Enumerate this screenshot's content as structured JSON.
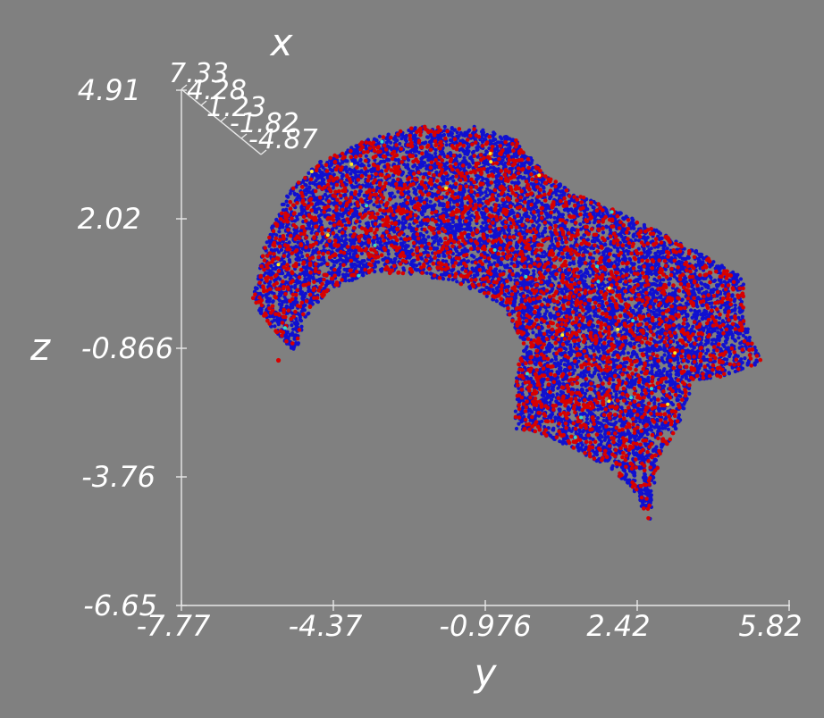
{
  "chart_data": {
    "type": "scatter",
    "axes": {
      "y": {
        "label": "y",
        "range": [
          -7.77,
          5.82
        ],
        "ticks": [
          "-7.77",
          "-4.37",
          "-0.976",
          "2.42",
          "5.82"
        ]
      },
      "z": {
        "label": "z",
        "range": [
          -6.65,
          4.91
        ],
        "ticks": [
          "-6.65",
          "-3.76",
          "-0.866",
          "2.02",
          "4.91"
        ]
      },
      "x": {
        "label": "x",
        "range": [
          -4.87,
          7.33
        ],
        "ticks": [
          "7.33",
          "4.28",
          "1.23",
          "-1.82",
          "-4.87"
        ]
      }
    },
    "colors": {
      "background": "#808080",
      "primary": "#1010d0",
      "secondary": "#d80000",
      "accent_yellow": "#ffee22",
      "accent_cyan": "#33ddcc",
      "axis": "#e8e8e8",
      "text": "#ffffff"
    },
    "grid": false,
    "series": [
      {
        "color": "#1010d0",
        "point_count": 9000,
        "outline_yz": [
          [
            -6.2,
            0.2
          ],
          [
            -5.9,
            1.5
          ],
          [
            -5.4,
            2.6
          ],
          [
            -4.7,
            3.3
          ],
          [
            -3.6,
            3.8
          ],
          [
            -2.5,
            4.1
          ],
          [
            -1.2,
            4.1
          ],
          [
            -0.3,
            3.8
          ],
          [
            0.4,
            3.0
          ],
          [
            1.0,
            2.6
          ],
          [
            2.2,
            2.1
          ],
          [
            3.4,
            1.5
          ],
          [
            4.8,
            0.7
          ],
          [
            4.8,
            -0.2
          ],
          [
            5.2,
            -1.2
          ],
          [
            4.4,
            -1.5
          ],
          [
            3.7,
            -1.6
          ],
          [
            3.5,
            -2.3
          ],
          [
            2.9,
            -3.4
          ],
          [
            2.7,
            -4.8
          ],
          [
            2.3,
            -4.0
          ],
          [
            1.7,
            -3.5
          ],
          [
            1.1,
            -3.2
          ],
          [
            0.7,
            -3.0
          ],
          [
            0.3,
            -2.8
          ],
          [
            -0.3,
            -2.7
          ],
          [
            -0.3,
            -1.5
          ],
          [
            -0.1,
            -0.8
          ],
          [
            -0.6,
            0.1
          ],
          [
            -1.6,
            0.6
          ],
          [
            -2.7,
            0.8
          ],
          [
            -3.6,
            0.8
          ],
          [
            -4.5,
            0.4
          ],
          [
            -5.0,
            -0.2
          ],
          [
            -5.2,
            -1.0
          ],
          [
            -5.6,
            -0.6
          ],
          [
            -6.0,
            -0.1
          ]
        ]
      },
      {
        "color": "#d80000",
        "point_count": 2600
      },
      {
        "color": "#ffee22",
        "point_count": 14
      },
      {
        "color": "#33ddcc",
        "point_count": 16
      }
    ]
  }
}
